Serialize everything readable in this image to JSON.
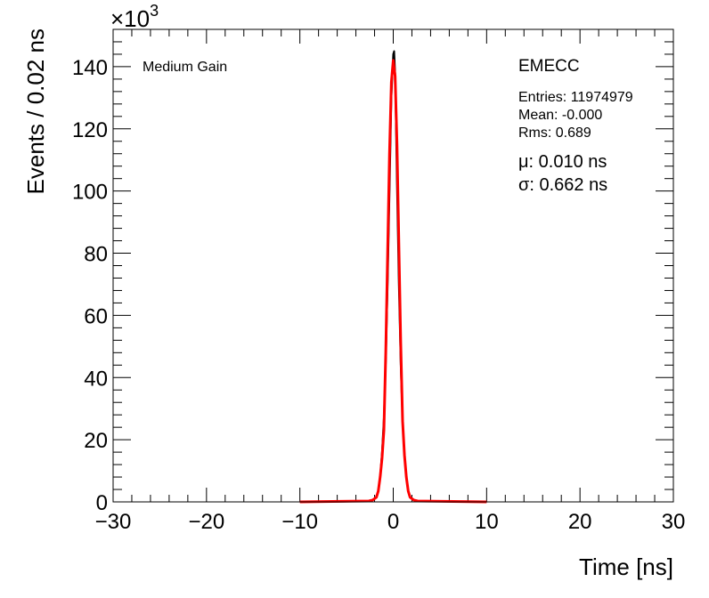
{
  "chart_data": {
    "type": "line",
    "xlabel": "Time [ns]",
    "ylabel": "Events / 0.02 ns",
    "y_exponent_label": "×10",
    "y_exponent_power": "3",
    "xlim": [
      -30,
      30
    ],
    "ylim": [
      0,
      152
    ],
    "x_ticks": [
      "−30",
      "−20",
      "−10",
      "0",
      "10",
      "20",
      "30"
    ],
    "x_tick_values": [
      -30,
      -20,
      -10,
      0,
      10,
      20,
      30
    ],
    "y_ticks": [
      "0",
      "20",
      "40",
      "60",
      "80",
      "100",
      "120",
      "140"
    ],
    "y_tick_values": [
      0,
      20,
      40,
      60,
      80,
      100,
      120,
      140
    ],
    "grid": false,
    "series": [
      {
        "color": "#000000",
        "x": [
          -10,
          -2.6,
          -2.2,
          -1.8,
          -1.6,
          -1.4,
          -1.2,
          -1.0,
          -0.8,
          -0.6,
          -0.4,
          -0.2,
          0.0,
          0.1,
          0.2,
          0.4,
          0.6,
          0.8,
          1.0,
          1.2,
          1.4,
          1.6,
          1.8,
          2.2,
          2.6,
          10
        ],
        "y": [
          0,
          0.2,
          0.6,
          1.5,
          3.5,
          8,
          16,
          27,
          45,
          70,
          100,
          130,
          144,
          145,
          138,
          102,
          70,
          44,
          26,
          15,
          8,
          3.5,
          1.5,
          0.6,
          0.2,
          0
        ]
      },
      {
        "color": "#ff0000",
        "x": [
          -10,
          -2.6,
          -2.2,
          -1.8,
          -1.6,
          -1.4,
          -1.2,
          -1.0,
          -0.8,
          -0.6,
          -0.4,
          -0.2,
          0.0,
          0.2,
          0.4,
          0.6,
          0.8,
          1.0,
          1.2,
          1.4,
          1.6,
          1.8,
          2.2,
          2.6,
          10
        ],
        "y": [
          0,
          0.3,
          0.6,
          1.5,
          3.5,
          8,
          14,
          23,
          48,
          80,
          112,
          135,
          142,
          137,
          115,
          83,
          51,
          26,
          15,
          8,
          3.5,
          1.5,
          0.6,
          0.3,
          0
        ]
      }
    ],
    "annotations": {
      "gain": "Medium Gain",
      "region": "EMECC",
      "entries": "Entries: 11974979",
      "mean": "Mean: -0.000",
      "rms": "Rms: 0.689",
      "mu": "μ: 0.010 ns",
      "sigma": "σ: 0.662 ns"
    }
  }
}
